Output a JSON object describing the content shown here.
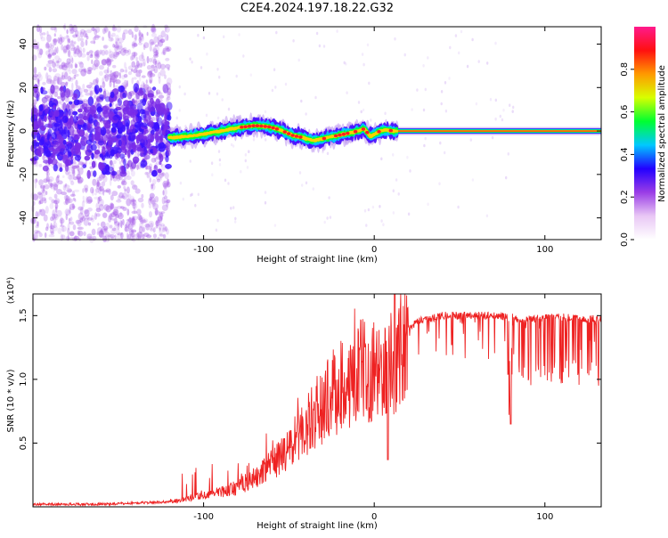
{
  "figure_title": "C2E4.2024.197.18.22.G32",
  "chart_data": [
    {
      "type": "heatmap",
      "title": "C2E4.2024.197.18.22.G32",
      "xlabel": "Height of straight line (km)",
      "ylabel": "Frequency (Hz)",
      "xlim": [
        -200,
        133
      ],
      "ylim": [
        -50,
        48
      ],
      "x_ticks": [
        -100,
        0,
        100
      ],
      "x_tick_labels": [
        "-100",
        "0",
        "100"
      ],
      "y_ticks": [
        -40,
        -20,
        0,
        20,
        40
      ],
      "y_tick_labels": [
        "-40",
        "-20",
        "0",
        "20",
        "40"
      ],
      "grid": false,
      "colorbar": {
        "label": "Normalized spectral amplitude",
        "range": [
          0,
          1
        ],
        "ticks": [
          0.0,
          0.2,
          0.4,
          0.6,
          0.8
        ],
        "tick_labels": [
          "0.0",
          "0.2",
          "0.4",
          "0.6",
          "0.8"
        ],
        "colormap": [
          "#ffffff",
          "#e9c7f5",
          "#9a3de6",
          "#2200ff",
          "#00c8ff",
          "#00ff30",
          "#d8ff00",
          "#ff9900",
          "#ff1010",
          "#ff1a8c"
        ]
      },
      "ridge": {
        "description_points_x": [
          -118,
          -110,
          -100,
          -90,
          -80,
          -70,
          -62,
          -55,
          -48,
          -42,
          -36,
          -30,
          -24,
          -18,
          -12,
          -6,
          -2,
          2,
          6,
          12,
          133
        ],
        "frequency_y": [
          -3,
          -2.5,
          -1.5,
          0,
          1.5,
          2.5,
          2,
          0.5,
          -2,
          -3,
          -4.5,
          -3.5,
          -2.5,
          -1.5,
          -0.5,
          1,
          -2.5,
          -0.5,
          0.5,
          0,
          0
        ]
      }
    },
    {
      "type": "line",
      "xlabel": "Height of straight line (km)",
      "ylabel": "SNR (10 * v/v)",
      "y_multiplier_label": "(x10⁴)",
      "xlim": [
        -200,
        133
      ],
      "ylim": [
        0,
        1.67
      ],
      "x_ticks": [
        -100,
        0,
        100
      ],
      "x_tick_labels": [
        "-100",
        "0",
        "100"
      ],
      "y_ticks": [
        0.5,
        1.0,
        1.5
      ],
      "y_tick_labels": [
        "0.5",
        "1.0",
        "1.5"
      ],
      "line_color": "#ee2222",
      "series": [
        {
          "x": [
            -200,
            -180,
            -160,
            -140,
            -120,
            -110,
            -100,
            -90,
            -80,
            -70,
            -60,
            -50,
            -40,
            -30,
            -20,
            -10,
            0,
            5,
            10,
            15,
            20,
            25,
            30,
            40,
            50,
            60,
            70,
            80,
            85,
            90,
            100,
            110,
            120,
            133
          ],
          "values": [
            0.02,
            0.02,
            0.02,
            0.03,
            0.04,
            0.07,
            0.1,
            0.13,
            0.17,
            0.25,
            0.36,
            0.5,
            0.7,
            0.9,
            1.05,
            1.18,
            1.2,
            1.1,
            1.3,
            1.35,
            1.42,
            1.48,
            1.5,
            1.53,
            1.53,
            1.53,
            1.53,
            1.52,
            1.5,
            1.5,
            1.51,
            1.52,
            1.51,
            1.5
          ]
        }
      ],
      "notable_dips": [
        {
          "x": 8,
          "y": 0.37
        },
        {
          "x": 80,
          "y": 0.65
        }
      ],
      "notable_peaks": [
        {
          "x": 12,
          "y": 1.67
        }
      ]
    }
  ]
}
